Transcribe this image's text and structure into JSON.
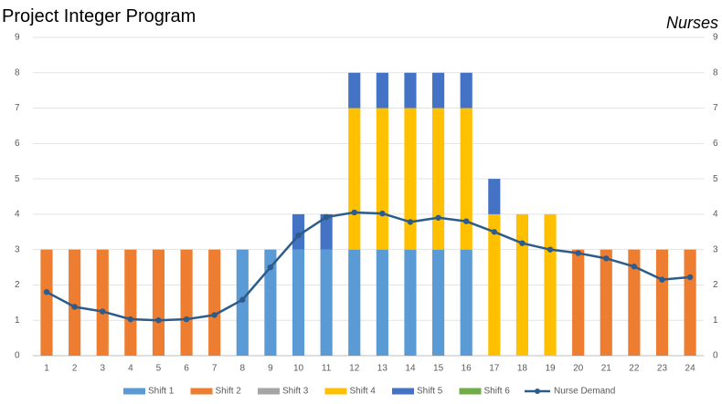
{
  "chart_data": {
    "type": "bar",
    "stacked": true,
    "title": "Project Integer Program",
    "y2_label": "Nurses",
    "categories": [
      "1",
      "2",
      "3",
      "4",
      "5",
      "6",
      "7",
      "8",
      "9",
      "10",
      "11",
      "12",
      "13",
      "14",
      "15",
      "16",
      "17",
      "18",
      "19",
      "20",
      "21",
      "22",
      "23",
      "24"
    ],
    "series": [
      {
        "name": "Shift 1",
        "color": "#5b9bd5",
        "values": [
          0,
          0,
          0,
          0,
          0,
          0,
          0,
          3,
          3,
          3,
          3,
          3,
          3,
          3,
          3,
          3,
          0,
          0,
          0,
          0,
          0,
          0,
          0,
          0
        ]
      },
      {
        "name": "Shift 2",
        "color": "#ed7d31",
        "values": [
          3,
          3,
          3,
          3,
          3,
          3,
          3,
          0,
          0,
          0,
          0,
          0,
          0,
          0,
          0,
          0,
          0,
          0,
          0,
          3,
          3,
          3,
          3,
          3
        ]
      },
      {
        "name": "Shift 3",
        "color": "#a5a5a5",
        "values": [
          0,
          0,
          0,
          0,
          0,
          0,
          0,
          0,
          0,
          0,
          0,
          0,
          0,
          0,
          0,
          0,
          0,
          0,
          0,
          0,
          0,
          0,
          0,
          0
        ]
      },
      {
        "name": "Shift 4",
        "color": "#ffc000",
        "values": [
          0,
          0,
          0,
          0,
          0,
          0,
          0,
          0,
          0,
          0,
          0,
          4,
          4,
          4,
          4,
          4,
          4,
          4,
          4,
          0,
          0,
          0,
          0,
          0
        ]
      },
      {
        "name": "Shift 5",
        "color": "#4472c4",
        "values": [
          0,
          0,
          0,
          0,
          0,
          0,
          0,
          0,
          0,
          1,
          1,
          1,
          1,
          1,
          1,
          1,
          1,
          0,
          0,
          0,
          0,
          0,
          0,
          0
        ]
      },
      {
        "name": "Shift 6",
        "color": "#70ad47",
        "values": [
          0,
          0,
          0,
          0,
          0,
          0,
          0,
          0,
          0,
          0,
          0,
          0,
          0,
          0,
          0,
          0,
          0,
          0,
          0,
          0,
          0,
          0,
          0,
          0
        ]
      },
      {
        "name": "Nurse Demand",
        "type": "line",
        "axis": "y2",
        "color": "#2e5c8a",
        "values": [
          1.8,
          1.38,
          1.25,
          1.03,
          1.0,
          1.03,
          1.15,
          1.58,
          2.5,
          3.4,
          3.92,
          4.05,
          4.02,
          3.78,
          3.9,
          3.8,
          3.5,
          3.18,
          3.0,
          2.9,
          2.75,
          2.52,
          2.15,
          2.22
        ]
      }
    ],
    "ylim": [
      0,
      9
    ],
    "yticks": [
      0,
      1,
      2,
      3,
      4,
      5,
      6,
      7,
      8,
      9
    ],
    "y2lim": [
      0,
      9
    ],
    "y2ticks": [
      0,
      1,
      2,
      3,
      4,
      5,
      6,
      7,
      8,
      9
    ],
    "grid": true,
    "legend": "bottom"
  }
}
